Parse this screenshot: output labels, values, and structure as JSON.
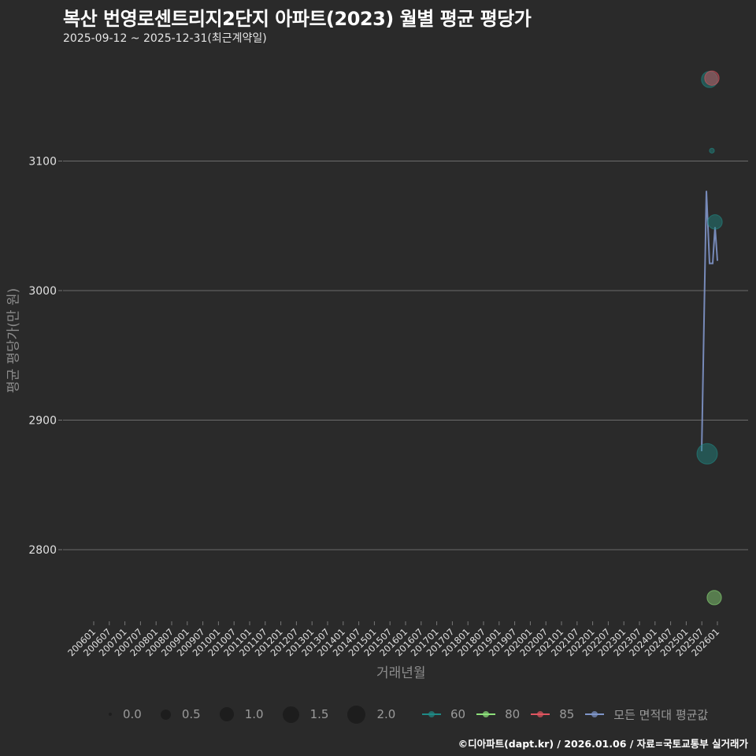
{
  "header": {
    "title": "복산 번영로센트리지2단지 아파트(2023) 월별 평균 평당가",
    "subtitle": "2025-09-12 ~ 2025-12-31(최근계약일)"
  },
  "axes": {
    "ylabel": "평균 평당가(만 원)",
    "xlabel": "거래년월",
    "yticks": [
      "3100",
      "3000",
      "2900",
      "2800"
    ],
    "xticks": [
      "200601",
      "200607",
      "200701",
      "200707",
      "200801",
      "200807",
      "200901",
      "200907",
      "201001",
      "201007",
      "201101",
      "201107",
      "201201",
      "201207",
      "201301",
      "201307",
      "201401",
      "201407",
      "201501",
      "201507",
      "201601",
      "201607",
      "201701",
      "201707",
      "201801",
      "201807",
      "201901",
      "201907",
      "202001",
      "202007",
      "202101",
      "202107",
      "202201",
      "202207",
      "202301",
      "202307",
      "202401",
      "202407",
      "202501",
      "202507",
      "202601"
    ]
  },
  "legend": {
    "size": [
      {
        "label": "0.0",
        "d": 4
      },
      {
        "label": "0.5",
        "d": 13
      },
      {
        "label": "1.0",
        "d": 18
      },
      {
        "label": "1.5",
        "d": 21
      },
      {
        "label": "2.0",
        "d": 23
      }
    ],
    "color": [
      {
        "label": "60",
        "color": "#1f8a86"
      },
      {
        "label": "80",
        "color": "#8de07a"
      },
      {
        "label": "85",
        "color": "#e05560"
      },
      {
        "label": "모든 면적대 평균값",
        "color": "#7f95c9"
      }
    ]
  },
  "footer": {
    "text": "©디아파트(dapt.kr) / 2026.01.06 / 자료=국토교통부 실거래가"
  },
  "chart_data": {
    "type": "scatter+line",
    "title": "복산 번영로센트리지2단지 아파트(2023) 월별 평균 평당가",
    "subtitle": "2025-09-12 ~ 2025-12-31(최근계약일)",
    "xlabel": "거래년월",
    "ylabel": "평균 평당가(만 원)",
    "ylim": [
      2745,
      3175
    ],
    "xlim": [
      "200601",
      "202601"
    ],
    "grid": "horizontal major lines",
    "legend_position": "bottom",
    "series": [
      {
        "name": "60",
        "type": "scatter",
        "color": "#1f8a86",
        "points": [
          {
            "x": "2025-09",
            "y": 2874,
            "size": 2.0
          },
          {
            "x": "2025-10",
            "y": 3163,
            "size": 1.5
          },
          {
            "x": "2025-11",
            "y": 3108,
            "size": 0.2
          },
          {
            "x": "2025-12",
            "y": 3053,
            "size": 1.3
          }
        ]
      },
      {
        "name": "80",
        "type": "scatter",
        "color": "#8de07a",
        "points": [
          {
            "x": "2025-12",
            "y": 2763,
            "size": 1.3
          }
        ]
      },
      {
        "name": "85",
        "type": "scatter",
        "color": "#e05560",
        "points": [
          {
            "x": "2025-11",
            "y": 3164,
            "size": 1.3
          }
        ]
      },
      {
        "name": "모든 면적대 평균값",
        "type": "line",
        "color": "#7f95c9",
        "points": [
          {
            "x": "2025-09",
            "y": 2876
          },
          {
            "x": "2025-10",
            "y": 3077
          },
          {
            "x": "2025-10b",
            "y": 3021
          },
          {
            "x": "2025-11",
            "y": 3021
          },
          {
            "x": "2025-11b",
            "y": 3049
          },
          {
            "x": "2025-12",
            "y": 3023
          }
        ]
      }
    ]
  }
}
